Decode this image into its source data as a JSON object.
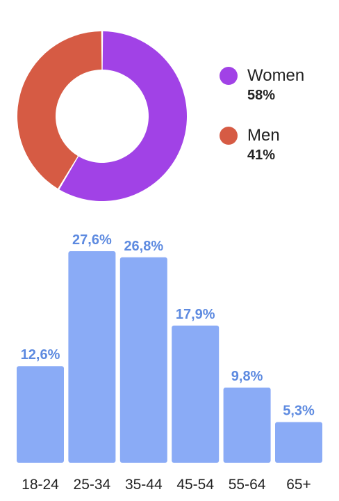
{
  "chart_data": [
    {
      "type": "pie",
      "series": [
        {
          "name": "Women",
          "value": 58,
          "value_label": "58%",
          "color": "#a142e6"
        },
        {
          "name": "Men",
          "value": 41,
          "value_label": "41%",
          "color": "#d65b44"
        }
      ],
      "legend_position": "right"
    },
    {
      "type": "bar",
      "categories": [
        "18-24",
        "25-34",
        "35-44",
        "45-54",
        "55-64",
        "65+"
      ],
      "values": [
        12.6,
        27.6,
        26.8,
        17.9,
        9.8,
        5.3
      ],
      "value_labels": [
        "12,6%",
        "27,6%",
        "26,8%",
        "17,9%",
        "9,8%",
        "5,3%"
      ],
      "bar_color": "#8aabf6",
      "label_color": "#5d8ae0",
      "grid": false
    }
  ]
}
